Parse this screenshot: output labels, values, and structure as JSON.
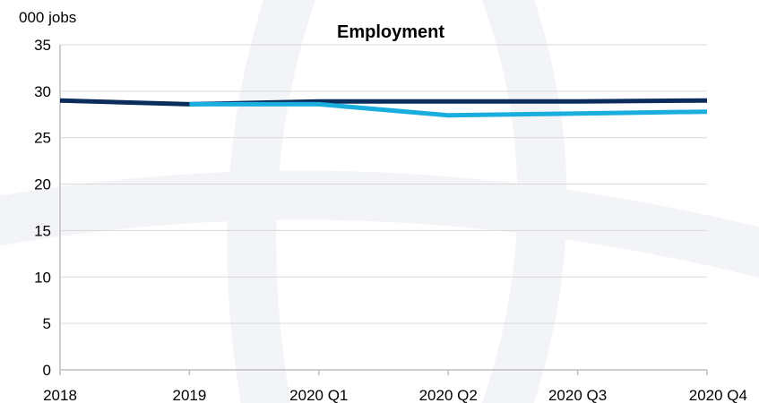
{
  "chart_data": {
    "type": "line",
    "title": "Employment",
    "ylabel": "000 jobs",
    "xlabel": "",
    "categories": [
      "2018",
      "2019",
      "2020 Q1",
      "2020 Q2",
      "2020 Q3",
      "2020 Q4"
    ],
    "ylim": [
      0,
      35
    ],
    "yticks": [
      0,
      5,
      10,
      15,
      20,
      25,
      30,
      35
    ],
    "grid": true,
    "legend": "none",
    "series": [
      {
        "color": "#0b2d5b",
        "values": [
          29.0,
          28.6,
          28.9,
          28.9,
          28.9,
          29.0
        ]
      },
      {
        "color": "#1aaede",
        "values": [
          null,
          28.6,
          28.6,
          27.4,
          27.6,
          27.8
        ]
      }
    ]
  }
}
